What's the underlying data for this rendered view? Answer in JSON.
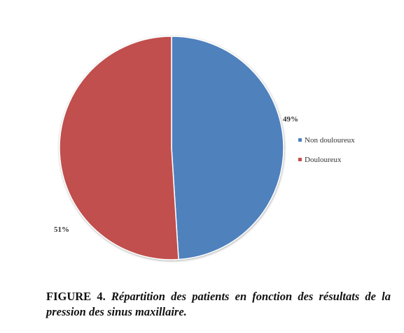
{
  "chart_data": {
    "type": "pie",
    "title": "",
    "categories": [
      "Non douloureux",
      "Douloureux"
    ],
    "values": [
      49,
      51
    ],
    "data_labels": [
      "49%",
      "51%"
    ],
    "colors": [
      "#4F81BD",
      "#C0504D"
    ],
    "legend": {
      "placement": "right",
      "entries": [
        "Non douloureux",
        "Douloureux"
      ]
    }
  },
  "caption": {
    "label": "FIGURE 4.",
    "text": "Répartition des patients en fonction des résultats de la pression des sinus maxillaire."
  }
}
